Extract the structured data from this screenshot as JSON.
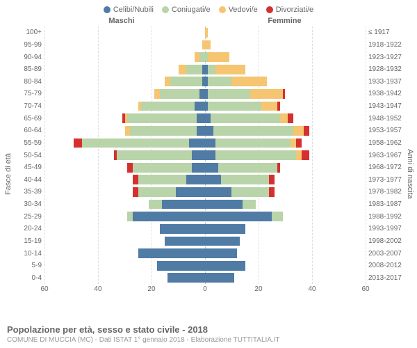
{
  "legend": {
    "items": [
      {
        "label": "Celibi/Nubili",
        "color": "#4f7ba5"
      },
      {
        "label": "Coniugati/e",
        "color": "#b8d4a8"
      },
      {
        "label": "Vedovi/e",
        "color": "#f5c572"
      },
      {
        "label": "Divorziati/e",
        "color": "#d62f2f"
      }
    ]
  },
  "sideTitles": {
    "left": "Maschi",
    "right": "Femmine"
  },
  "axisLabels": {
    "left": "Fasce di età",
    "right": "Anni di nascita"
  },
  "xAxis": {
    "max": 60,
    "ticks": [
      60,
      40,
      20,
      0,
      20,
      40,
      60
    ]
  },
  "gridColor": "#dddddd",
  "centerGridColor": "#c0c0c0",
  "ageBands": [
    "100+",
    "95-99",
    "90-94",
    "85-89",
    "80-84",
    "75-79",
    "70-74",
    "65-69",
    "60-64",
    "55-59",
    "50-54",
    "45-49",
    "40-44",
    "35-39",
    "30-34",
    "25-29",
    "20-24",
    "15-19",
    "10-14",
    "5-9",
    "0-4"
  ],
  "birthYears": [
    "≤ 1917",
    "1918-1922",
    "1923-1927",
    "1928-1932",
    "1933-1937",
    "1938-1942",
    "1943-1947",
    "1948-1952",
    "1953-1957",
    "1958-1962",
    "1963-1967",
    "1968-1972",
    "1973-1977",
    "1978-1982",
    "1983-1987",
    "1988-1992",
    "1993-1997",
    "1998-2002",
    "2003-2007",
    "2008-2012",
    "2013-2017"
  ],
  "data": {
    "male": [
      [
        0,
        0,
        0,
        0
      ],
      [
        0,
        0,
        1,
        0
      ],
      [
        0,
        2,
        2,
        0
      ],
      [
        1,
        6,
        3,
        0
      ],
      [
        1,
        12,
        2,
        0
      ],
      [
        2,
        15,
        2,
        0
      ],
      [
        4,
        20,
        1,
        0
      ],
      [
        3,
        26,
        1,
        1
      ],
      [
        3,
        25,
        2,
        0
      ],
      [
        6,
        40,
        0,
        3
      ],
      [
        5,
        28,
        0,
        1
      ],
      [
        5,
        22,
        0,
        2
      ],
      [
        7,
        18,
        0,
        2
      ],
      [
        11,
        14,
        0,
        2
      ],
      [
        16,
        5,
        0,
        0
      ],
      [
        27,
        2,
        0,
        0
      ],
      [
        17,
        0,
        0,
        0
      ],
      [
        15,
        0,
        0,
        0
      ],
      [
        25,
        0,
        0,
        0
      ],
      [
        18,
        0,
        0,
        0
      ],
      [
        14,
        0,
        0,
        0
      ]
    ],
    "female": [
      [
        0,
        0,
        1,
        0
      ],
      [
        0,
        0,
        2,
        0
      ],
      [
        0,
        1,
        8,
        0
      ],
      [
        1,
        3,
        11,
        0
      ],
      [
        1,
        9,
        13,
        0
      ],
      [
        1,
        16,
        12,
        1
      ],
      [
        1,
        20,
        6,
        1
      ],
      [
        2,
        26,
        3,
        2
      ],
      [
        3,
        30,
        4,
        2
      ],
      [
        4,
        28,
        2,
        2
      ],
      [
        4,
        30,
        2,
        3
      ],
      [
        5,
        22,
        0,
        1
      ],
      [
        6,
        18,
        0,
        2
      ],
      [
        10,
        14,
        0,
        2
      ],
      [
        14,
        5,
        0,
        0
      ],
      [
        25,
        4,
        0,
        0
      ],
      [
        15,
        0,
        0,
        0
      ],
      [
        13,
        0,
        0,
        0
      ],
      [
        12,
        0,
        0,
        0
      ],
      [
        15,
        0,
        0,
        0
      ],
      [
        11,
        0,
        0,
        0
      ]
    ]
  },
  "footer": {
    "title": "Popolazione per età, sesso e stato civile - 2018",
    "subtitle": "COMUNE DI MUCCIA (MC) - Dati ISTAT 1° gennaio 2018 - Elaborazione TUTTITALIA.IT"
  }
}
